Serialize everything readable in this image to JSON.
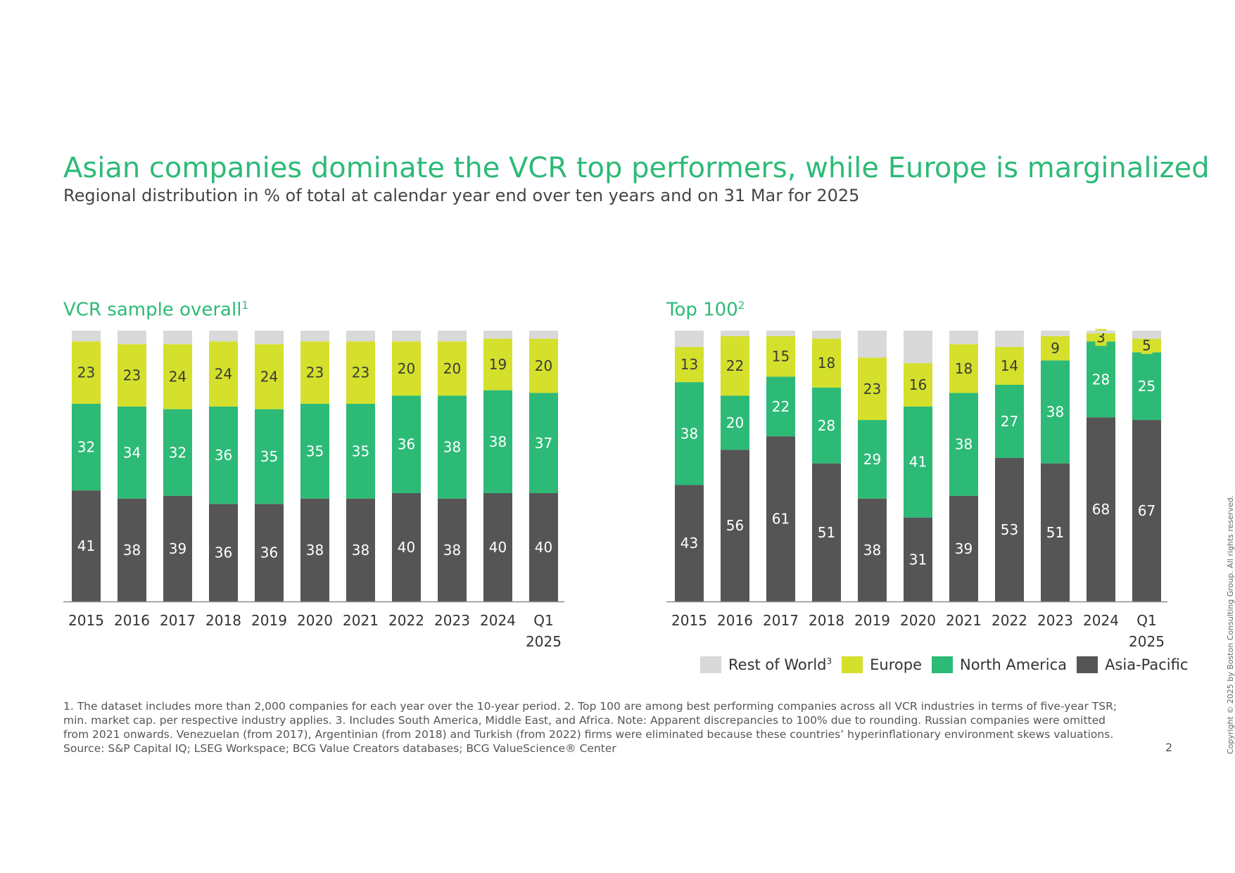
{
  "title": "Asian companies dominate the VCR top performers, while Europe is marginalized",
  "subtitle": "Regional distribution in % of total at calendar year end over ten years and on 31 Mar for 2025",
  "colors": {
    "rest_of_world": "#d9d9d9",
    "europe": "#d4e02b",
    "north_america": "#2dba77",
    "asia_pacific": "#555555",
    "title_green": "#2dba77"
  },
  "chart_data": [
    {
      "type": "bar",
      "stacked": true,
      "title": "VCR sample overall",
      "title_sup": "1",
      "categories": [
        "2015",
        "2016",
        "2017",
        "2018",
        "2019",
        "2020",
        "2021",
        "2022",
        "2023",
        "2024",
        "Q1 2025"
      ],
      "series": [
        {
          "name": "Asia-Pacific",
          "values": [
            41,
            38,
            39,
            36,
            36,
            38,
            38,
            40,
            38,
            40,
            40
          ]
        },
        {
          "name": "North America",
          "values": [
            32,
            34,
            32,
            36,
            35,
            35,
            35,
            36,
            38,
            38,
            37
          ]
        },
        {
          "name": "Europe",
          "values": [
            23,
            23,
            24,
            24,
            24,
            23,
            23,
            20,
            20,
            19,
            20
          ]
        },
        {
          "name": "Rest of World",
          "values": [
            4,
            5,
            5,
            4,
            5,
            4,
            4,
            4,
            4,
            3,
            3
          ]
        }
      ],
      "ylim": [
        0,
        100
      ],
      "grid": false
    },
    {
      "type": "bar",
      "stacked": true,
      "title": "Top 100",
      "title_sup": "2",
      "categories": [
        "2015",
        "2016",
        "2017",
        "2018",
        "2019",
        "2020",
        "2021",
        "2022",
        "2023",
        "2024",
        "Q1 2025"
      ],
      "series": [
        {
          "name": "Asia-Pacific",
          "values": [
            43,
            56,
            61,
            51,
            38,
            31,
            39,
            53,
            51,
            68,
            67
          ]
        },
        {
          "name": "North America",
          "values": [
            38,
            20,
            22,
            28,
            29,
            41,
            38,
            27,
            38,
            28,
            25
          ]
        },
        {
          "name": "Europe",
          "values": [
            13,
            22,
            15,
            18,
            23,
            16,
            18,
            14,
            9,
            3,
            5
          ]
        },
        {
          "name": "Rest of World",
          "values": [
            6,
            2,
            2,
            3,
            10,
            12,
            5,
            6,
            2,
            1,
            3
          ]
        }
      ],
      "ylim": [
        0,
        100
      ],
      "grid": false
    }
  ],
  "legend": {
    "placement": "bottom-right",
    "items": [
      {
        "label": "Rest of World",
        "sup": "3",
        "color": "#d9d9d9"
      },
      {
        "label": "Europe",
        "sup": "",
        "color": "#d4e02b"
      },
      {
        "label": "North America",
        "sup": "",
        "color": "#2dba77"
      },
      {
        "label": "Asia-Pacific",
        "sup": "",
        "color": "#555555"
      }
    ]
  },
  "footnotes": "1. The dataset includes more than 2,000 companies for each year over the 10-year period.   2. Top 100 are among best performing companies across all VCR industries in terms of five-year TSR; min. market cap. per respective industry applies.   3. Includes South America, Middle East, and Africa.   Note: Apparent discrepancies to 100% due to rounding. Russian companies were omitted from 2021 onwards. Venezuelan (from 2017), Argentinian (from 2018) and Turkish (from 2022) firms were eliminated because these countries’ hyperinflationary environment skews valuations.   Source: S&P Capital IQ; LSEG Workspace; BCG Value Creators databases; BCG ValueScience® Center",
  "page_number": "2",
  "copyright": "Copyright © 2025 by Boston Consulting Group. All rights reserved."
}
